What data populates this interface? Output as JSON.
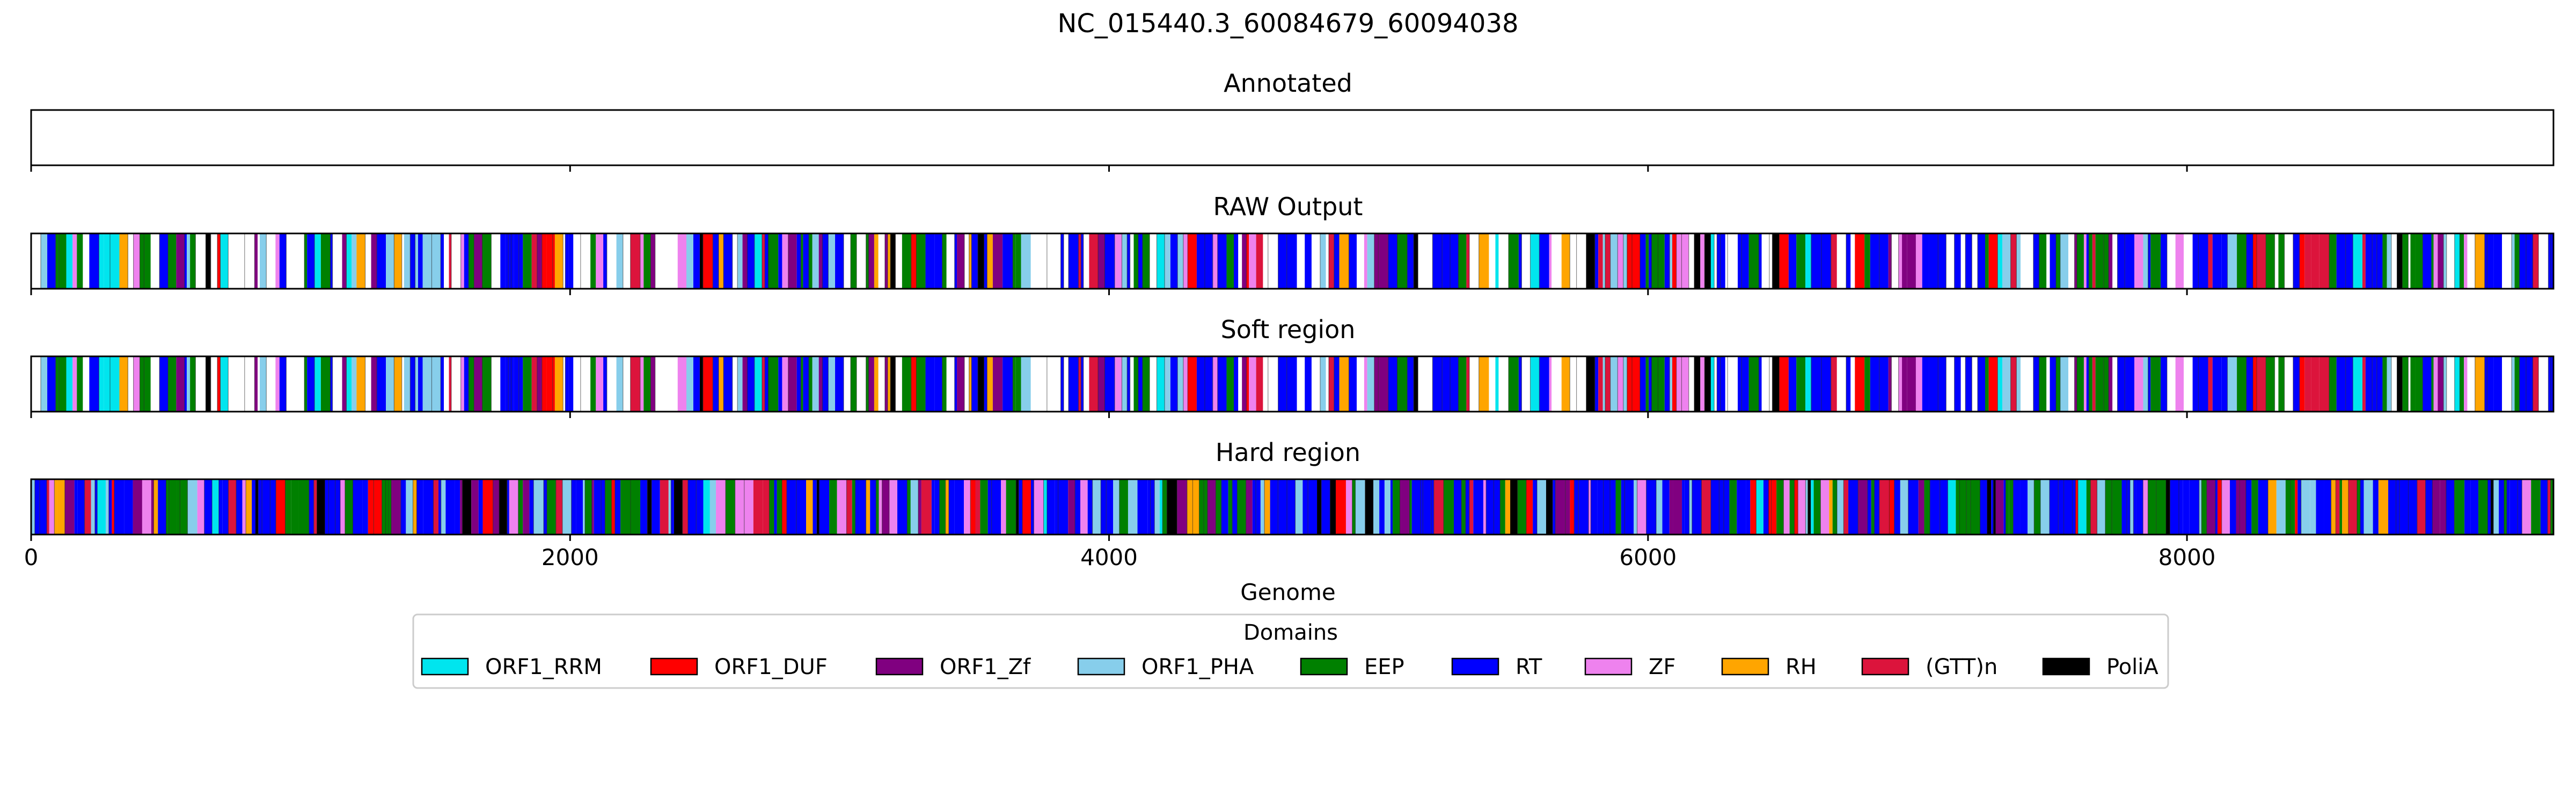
{
  "chart_data": {
    "type": "heatmap",
    "title": "NC_015440.3_60084679_60094038",
    "xlabel": "Genome",
    "xlim": [
      0,
      9360
    ],
    "xticks": [
      0,
      2000,
      4000,
      6000,
      8000
    ],
    "xtick_labels": [
      "0",
      "2000",
      "4000",
      "6000",
      "8000"
    ],
    "legend": {
      "title": "Domains",
      "placement": "lower-center",
      "entries": [
        {
          "name": "ORF1_RRM",
          "color": "#00e5ee"
        },
        {
          "name": "ORF1_DUF",
          "color": "#ff0000"
        },
        {
          "name": "ORF1_Zf",
          "color": "#800080"
        },
        {
          "name": "ORF1_PHA",
          "color": "#87ceeb"
        },
        {
          "name": "EEP",
          "color": "#008000"
        },
        {
          "name": "RT",
          "color": "#0000ff"
        },
        {
          "name": "ZF",
          "color": "#ee82ee"
        },
        {
          "name": "RH",
          "color": "#ffa500"
        },
        {
          "name": "(GTT)n",
          "color": "#dc143c"
        },
        {
          "name": "PoliA",
          "color": "#000000"
        }
      ]
    },
    "tracks": [
      {
        "title": "Annotated",
        "density": 0,
        "white_fraction": 1.0,
        "seed": 0
      },
      {
        "title": "RAW Output",
        "density": 1,
        "white_fraction": 0.22,
        "seed": 11
      },
      {
        "title": "Soft region",
        "density": 1,
        "white_fraction": 0.22,
        "seed": 11
      },
      {
        "title": "Hard region",
        "density": 1,
        "white_fraction": 0.0,
        "seed": 23
      }
    ]
  }
}
